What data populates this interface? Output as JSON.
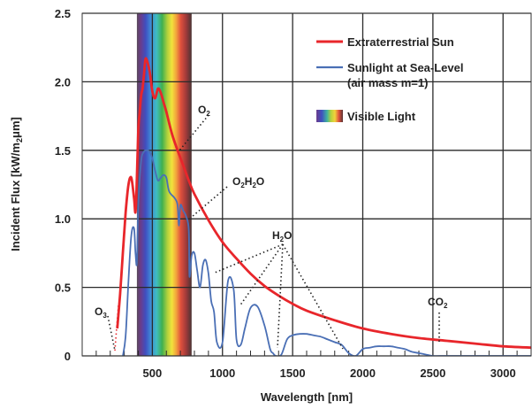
{
  "chart_data": {
    "type": "line",
    "xlabel": "Wavelength [nm]",
    "ylabel_parts": {
      "a": "Incident Flux [kW/m",
      "sub": "2",
      "b": "μm]"
    },
    "xlim": [
      0,
      3200
    ],
    "ylim": [
      0,
      2.5
    ],
    "xticks": [
      500,
      1000,
      1500,
      2000,
      2500,
      3000
    ],
    "xtick_labels": [
      "500",
      "1000",
      "1500",
      "2000",
      "2500",
      "3000"
    ],
    "yticks": [
      0,
      0.5,
      1.0,
      1.5,
      2.0,
      2.5
    ],
    "ytick_labels": [
      "0",
      "0.5",
      "1.0",
      "1.5",
      "2.0",
      "2.5"
    ],
    "grid": true,
    "visible_band": {
      "start": 390,
      "end": 780
    },
    "legend": [
      {
        "key": "extraterrestrial",
        "line1": "Extraterrestrial Sun",
        "line2": ""
      },
      {
        "key": "sealevel",
        "line1": "Sunlight at Sea-Level",
        "line2": "(air mass m=1)"
      },
      {
        "key": "visible",
        "line1": "Visible Light",
        "line2": ""
      }
    ],
    "series": [
      {
        "key": "extraterrestrial",
        "name": "Extraterrestrial Sun",
        "color": "#e8262b",
        "x": [
          250,
          270,
          290,
          310,
          330,
          350,
          370,
          380,
          390,
          400,
          410,
          420,
          430,
          440,
          450,
          460,
          480,
          500,
          520,
          540,
          560,
          580,
          600,
          640,
          680,
          720,
          760,
          800,
          900,
          1000,
          1100,
          1200,
          1300,
          1400,
          1500,
          1600,
          1800,
          2000,
          2200,
          2400,
          2600,
          2800,
          3000,
          3200
        ],
        "y": [
          0.2,
          0.45,
          0.75,
          1.05,
          1.25,
          1.3,
          1.15,
          1.05,
          1.3,
          1.65,
          1.78,
          1.9,
          1.95,
          2.05,
          2.16,
          2.16,
          2.08,
          1.93,
          1.88,
          1.95,
          1.92,
          1.85,
          1.78,
          1.62,
          1.5,
          1.39,
          1.28,
          1.18,
          0.99,
          0.83,
          0.71,
          0.6,
          0.51,
          0.44,
          0.38,
          0.33,
          0.26,
          0.2,
          0.16,
          0.13,
          0.11,
          0.09,
          0.07,
          0.06
        ]
      },
      {
        "key": "sealevel",
        "name": "Sunlight at Sea-Level",
        "color": "#4a6fb5",
        "x": [
          290,
          310,
          330,
          350,
          370,
          380,
          390,
          400,
          420,
          440,
          460,
          480,
          500,
          520,
          540,
          560,
          580,
          600,
          620,
          660,
          680,
          690,
          700,
          720,
          740,
          760,
          765,
          780,
          800,
          820,
          840,
          860,
          880,
          900,
          920,
          940,
          960,
          1000,
          1040,
          1080,
          1100,
          1130,
          1160,
          1200,
          1250,
          1300,
          1340,
          1360,
          1380,
          1420,
          1460,
          1500,
          1550,
          1600,
          1650,
          1700,
          1750,
          1800,
          1850,
          1900,
          1950,
          2000,
          2050,
          2100,
          2150,
          2200,
          2250,
          2300,
          2350,
          2400,
          2450,
          2500,
          2600,
          2800,
          3000,
          3200
        ],
        "y": [
          0.0,
          0.15,
          0.55,
          0.88,
          0.93,
          0.75,
          0.68,
          1.1,
          1.42,
          1.49,
          1.5,
          1.49,
          1.44,
          1.35,
          1.28,
          1.3,
          1.32,
          1.3,
          1.2,
          1.15,
          1.1,
          0.95,
          1.1,
          1.06,
          1.02,
          0.92,
          0.58,
          0.73,
          0.75,
          0.62,
          0.5,
          0.66,
          0.7,
          0.6,
          0.4,
          0.32,
          0.1,
          0.1,
          0.55,
          0.48,
          0.12,
          0.08,
          0.2,
          0.35,
          0.36,
          0.22,
          0.05,
          0.02,
          0.0,
          0.01,
          0.12,
          0.15,
          0.16,
          0.16,
          0.15,
          0.14,
          0.12,
          0.1,
          0.08,
          0.02,
          0.0,
          0.05,
          0.06,
          0.07,
          0.07,
          0.07,
          0.06,
          0.05,
          0.03,
          0.02,
          0.01,
          0.0,
          0.0,
          0.0,
          0.0,
          0.0
        ]
      }
    ],
    "annotations": [
      {
        "key": "o3",
        "text": "O",
        "sub": "3",
        "tail": ""
      },
      {
        "key": "o2",
        "text": "O",
        "sub": "2",
        "tail": ""
      },
      {
        "key": "o2h2o",
        "text": "O",
        "sub": "2",
        "tail": "H",
        "sub2": "2",
        "tail2": "O"
      },
      {
        "key": "h2o",
        "text": "H",
        "sub": "2",
        "tail": "O"
      },
      {
        "key": "co2",
        "text": "CO",
        "sub": "2",
        "tail": ""
      }
    ]
  }
}
